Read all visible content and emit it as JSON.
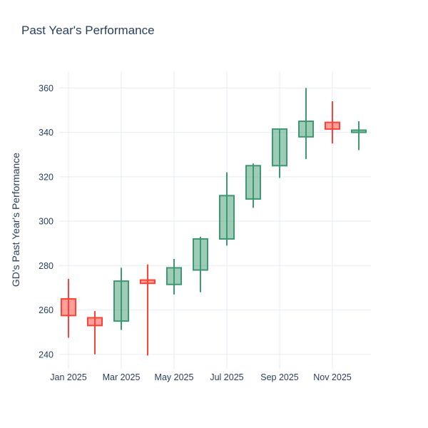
{
  "title": "Past Year's Performance",
  "y_axis_title": "GD's Past Year's Performance",
  "chart_data": {
    "type": "candlestick",
    "x": [
      "Jan 2025",
      "Feb 2025",
      "Mar 2025",
      "Apr 2025",
      "May 2025",
      "Jun 2025",
      "Jul 2025",
      "Aug 2025",
      "Sep 2025",
      "Oct 2025",
      "Nov 2025",
      "Dec 2025"
    ],
    "x_tick_labels": [
      "Jan 2025",
      "Mar 2025",
      "May 2025",
      "Jul 2025",
      "Sep 2025",
      "Nov 2025"
    ],
    "y_ticks": [
      240,
      260,
      280,
      300,
      320,
      340,
      360
    ],
    "ylim": [
      233.5,
      367.5
    ],
    "ohlc": [
      {
        "month": "Jan 2025",
        "open": 265,
        "high": 274,
        "low": 247.5,
        "close": 257.5
      },
      {
        "month": "Feb 2025",
        "open": 256.5,
        "high": 259.5,
        "low": 240,
        "close": 253
      },
      {
        "month": "Mar 2025",
        "open": 255,
        "high": 279,
        "low": 251,
        "close": 273
      },
      {
        "month": "Apr 2025",
        "open": 273.5,
        "high": 280.5,
        "low": 239.5,
        "close": 272
      },
      {
        "month": "May 2025",
        "open": 271.5,
        "high": 283,
        "low": 267,
        "close": 279
      },
      {
        "month": "Jun 2025",
        "open": 278,
        "high": 293,
        "low": 268,
        "close": 292
      },
      {
        "month": "Jul 2025",
        "open": 292,
        "high": 322,
        "low": 289,
        "close": 311.5
      },
      {
        "month": "Aug 2025",
        "open": 310,
        "high": 326,
        "low": 306,
        "close": 325
      },
      {
        "month": "Sep 2025",
        "open": 325,
        "high": 341.5,
        "low": 319.5,
        "close": 341.5
      },
      {
        "month": "Oct 2025",
        "open": 338,
        "high": 360,
        "low": 328,
        "close": 345
      },
      {
        "month": "Nov 2025",
        "open": 344.5,
        "high": 354,
        "low": 335,
        "close": 341.5
      },
      {
        "month": "Dec 2025",
        "open": 340,
        "high": 345,
        "low": 332,
        "close": 341
      }
    ],
    "increasing_color": "#3D9970",
    "decreasing_color": "#FF4136",
    "grid": true,
    "grid_color": "#EBF0F8",
    "text_color": "#2a3f5f",
    "background_color": "#ffffff",
    "legend": "none"
  }
}
